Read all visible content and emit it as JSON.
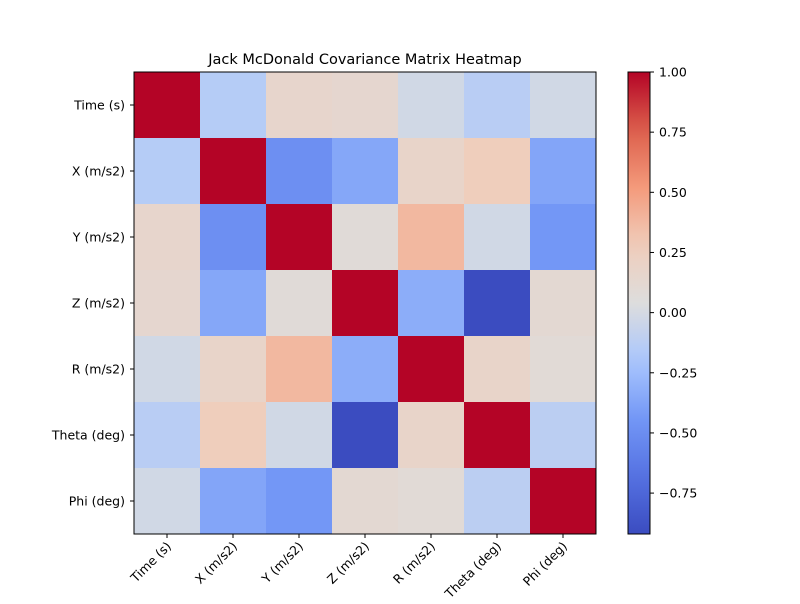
{
  "chart_data": {
    "type": "heatmap",
    "title": "Jack McDonald Covariance Matrix Heatmap",
    "colormap": "coolwarm",
    "x_labels": [
      "Time (s)",
      "X (m/s2)",
      "Y (m/s2)",
      "Z (m/s2)",
      "R (m/s2)",
      "Theta (deg)",
      "Phi (deg)"
    ],
    "y_labels": [
      "Time (s)",
      "X (m/s2)",
      "Y (m/s2)",
      "Z (m/s2)",
      "R (m/s2)",
      "Theta (deg)",
      "Phi (deg)"
    ],
    "values": [
      [
        1.0,
        -0.15,
        0.16,
        0.14,
        -0.02,
        -0.13,
        -0.02
      ],
      [
        -0.15,
        1.0,
        -0.49,
        -0.36,
        0.18,
        0.27,
        -0.37
      ],
      [
        0.16,
        -0.49,
        1.0,
        0.08,
        0.38,
        -0.02,
        -0.44
      ],
      [
        0.14,
        -0.36,
        0.08,
        1.0,
        -0.33,
        -0.92,
        0.12
      ],
      [
        -0.02,
        0.18,
        0.38,
        -0.33,
        1.0,
        0.18,
        0.09
      ],
      [
        -0.13,
        0.27,
        -0.02,
        -0.92,
        0.18,
        1.0,
        -0.12
      ],
      [
        -0.02,
        -0.37,
        -0.44,
        0.12,
        0.09,
        -0.12,
        1.0
      ]
    ],
    "colorbar": {
      "vmin": -0.92,
      "vmax": 1.0,
      "ticks": [
        1.0,
        0.75,
        0.5,
        0.25,
        0.0,
        -0.25,
        -0.5,
        -0.75
      ],
      "tick_labels": [
        "1.00",
        "0.75",
        "0.50",
        "0.25",
        "0.00",
        "−0.25",
        "−0.50",
        "−0.75"
      ]
    },
    "x_tick_rotation_deg": 45,
    "grid": false
  }
}
